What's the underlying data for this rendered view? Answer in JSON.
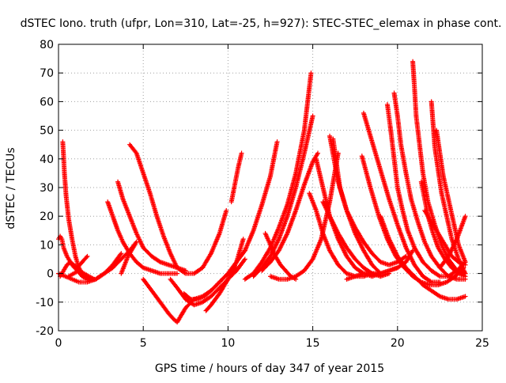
{
  "chart_data": {
    "type": "scatter",
    "title": "dSTEC Iono. truth (ufpr, Lon=310, Lat=-25, h=927): STEC-STEC_elemax in phase cont.",
    "xlabel": "GPS time / hours of day 347 of year 2015",
    "ylabel": "dSTEC  / TECUs",
    "xlim": [
      0,
      25
    ],
    "ylim": [
      -20,
      80
    ],
    "xticks": [
      0,
      5,
      10,
      15,
      20,
      25
    ],
    "yticks": [
      -20,
      -10,
      0,
      10,
      20,
      30,
      40,
      50,
      60,
      70,
      80
    ],
    "grid": true,
    "marker": "plus",
    "color": "#ff0000",
    "series": [
      {
        "x": [
          0.0,
          0.1,
          0.2,
          0.3,
          0.5,
          0.8,
          1.1,
          1.4,
          1.7
        ],
        "y": [
          12,
          13,
          12,
          9,
          6,
          3,
          1,
          -1,
          -2
        ]
      },
      {
        "x": [
          0.25,
          0.3,
          0.35,
          0.45,
          0.6,
          0.8,
          1.0,
          1.2,
          1.5,
          1.8,
          2.2,
          2.7,
          3.2,
          3.7
        ],
        "y": [
          46,
          41,
          35,
          27,
          19,
          12,
          6,
          2,
          -1,
          -2,
          -2,
          0,
          3,
          7
        ]
      },
      {
        "x": [
          0.0,
          0.4,
          0.8,
          1.2,
          1.7,
          2.2,
          2.7,
          3.2,
          3.7,
          4.2,
          4.6
        ],
        "y": [
          0,
          -1,
          -2,
          -3,
          -3,
          -2,
          0,
          2,
          5,
          8,
          11
        ]
      },
      {
        "x": [
          0.1,
          0.3,
          0.5,
          0.7,
          0.9,
          1.1,
          1.4,
          1.7
        ],
        "y": [
          -1,
          1,
          3,
          4,
          3,
          2,
          4,
          6
        ]
      },
      {
        "x": [
          0.6,
          0.9,
          1.2,
          1.5,
          1.8,
          2.1
        ],
        "y": [
          -1,
          0,
          1,
          0,
          -1,
          -2
        ]
      },
      {
        "x": [
          2.9,
          3.2,
          3.5,
          3.8,
          4.2,
          4.6,
          5.0,
          5.5,
          6.0,
          6.5,
          7.0
        ],
        "y": [
          25,
          20,
          15,
          11,
          7,
          4,
          2,
          1,
          0,
          0,
          0
        ]
      },
      {
        "x": [
          3.5,
          3.8,
          4.2,
          4.6,
          5.0,
          5.5,
          6.0,
          6.5,
          7.0,
          7.5
        ],
        "y": [
          32,
          26,
          20,
          14,
          9,
          6,
          4,
          3,
          2,
          1
        ]
      },
      {
        "x": [
          4.2,
          4.6,
          5.0,
          5.4,
          5.8,
          6.2,
          6.6,
          7.0,
          7.5,
          8.0,
          8.5,
          9.0,
          9.5,
          9.9
        ],
        "y": [
          45,
          42,
          35,
          28,
          20,
          13,
          7,
          2,
          0,
          0,
          2,
          7,
          14,
          22
        ]
      },
      {
        "x": [
          3.7,
          3.9,
          4.1,
          4.3,
          4.5
        ],
        "y": [
          0,
          3,
          6,
          8,
          10
        ]
      },
      {
        "x": [
          5.0,
          5.5,
          6.0,
          6.5,
          6.8,
          7.0,
          7.5,
          8.0,
          8.5,
          9.0,
          9.5,
          10.0,
          10.5
        ],
        "y": [
          -2,
          -6,
          -10,
          -14,
          -16,
          -17,
          -12,
          -9,
          -8,
          -6,
          -3,
          0,
          2
        ]
      },
      {
        "x": [
          6.6,
          7.0,
          7.5,
          8.0,
          8.5,
          9.0,
          9.5,
          10.0,
          10.5,
          11.0
        ],
        "y": [
          -2,
          -5,
          -9,
          -11,
          -10,
          -8,
          -5,
          -2,
          1,
          5
        ]
      },
      {
        "x": [
          7.4,
          7.8,
          8.2,
          8.6,
          9.0,
          9.5,
          10.0,
          10.5,
          11.0
        ],
        "y": [
          -7,
          -9,
          -9,
          -8,
          -6,
          -3,
          0,
          4,
          8
        ]
      },
      {
        "x": [
          8.7,
          9.0,
          9.5,
          10.0,
          10.5,
          10.9
        ],
        "y": [
          -13,
          -11,
          -7,
          -2,
          4,
          12
        ]
      },
      {
        "x": [
          10.2,
          10.4,
          10.6,
          10.8
        ],
        "y": [
          25,
          31,
          37,
          42
        ]
      },
      {
        "x": [
          11.0,
          11.5,
          12.0,
          12.5,
          13.0,
          13.5,
          14.0,
          14.5,
          14.9
        ],
        "y": [
          -2,
          0,
          4,
          9,
          16,
          24,
          35,
          50,
          70
        ]
      },
      {
        "x": [
          11.0,
          11.5,
          12.0,
          12.5,
          12.9
        ],
        "y": [
          8,
          15,
          24,
          34,
          46
        ]
      },
      {
        "x": [
          11.5,
          12.0,
          12.5,
          13.0,
          13.5,
          14.0,
          14.5,
          15.0
        ],
        "y": [
          -1,
          2,
          6,
          12,
          20,
          30,
          42,
          55
        ]
      },
      {
        "x": [
          12.0,
          12.5,
          13.0,
          13.5,
          14.0,
          14.5,
          15.0,
          15.3
        ],
        "y": [
          1,
          4,
          8,
          14,
          22,
          31,
          39,
          42
        ]
      },
      {
        "x": [
          12.2,
          12.5,
          12.8,
          13.1,
          13.4,
          13.7,
          14.0
        ],
        "y": [
          14,
          10,
          6,
          3,
          1,
          -1,
          -2
        ]
      },
      {
        "x": [
          12.5,
          13.0,
          13.5,
          14.0,
          14.5,
          15.0,
          15.5,
          16.0,
          16.5
        ],
        "y": [
          -1,
          -2,
          -2,
          -1,
          1,
          5,
          12,
          25,
          42
        ]
      },
      {
        "x": [
          14.8,
          15.2,
          15.6,
          16.0,
          16.5,
          17.0,
          17.5,
          18.0,
          18.5
        ],
        "y": [
          28,
          22,
          14,
          8,
          3,
          0,
          -1,
          -1,
          0
        ]
      },
      {
        "x": [
          15.2,
          15.6,
          16.0,
          16.5,
          17.0,
          17.5,
          18.0,
          18.5,
          19.0
        ],
        "y": [
          40,
          30,
          20,
          12,
          6,
          2,
          0,
          -1,
          0
        ]
      },
      {
        "x": [
          15.6,
          16.0,
          16.5,
          17.0,
          17.5,
          18.0,
          18.5,
          19.0,
          19.5
        ],
        "y": [
          25,
          20,
          14,
          9,
          5,
          2,
          0,
          -1,
          0
        ]
      },
      {
        "x": [
          16.0,
          16.5,
          17.0,
          17.5,
          18.0,
          18.5,
          19.0,
          19.5,
          20.0
        ],
        "y": [
          48,
          32,
          22,
          14,
          8,
          3,
          0,
          1,
          2
        ]
      },
      {
        "x": [
          16.2,
          16.6,
          17.0,
          17.5,
          18.0,
          18.5,
          19.0,
          19.5,
          20.0,
          20.5
        ],
        "y": [
          47,
          30,
          22,
          16,
          11,
          7,
          4,
          3,
          4,
          6
        ]
      },
      {
        "x": [
          18.0,
          18.5,
          19.0,
          19.5,
          20.0,
          20.5,
          21.0,
          21.5,
          22.0,
          22.5
        ],
        "y": [
          56,
          46,
          36,
          26,
          17,
          9,
          3,
          -1,
          -3,
          -3
        ]
      },
      {
        "x": [
          17.9,
          18.4,
          18.9,
          19.4,
          19.9,
          20.4,
          20.9,
          21.4,
          21.9,
          22.4,
          22.9,
          23.4,
          23.9
        ],
        "y": [
          41,
          30,
          20,
          12,
          6,
          2,
          -1,
          -3,
          -4,
          -4,
          -3,
          -1,
          2
        ]
      },
      {
        "x": [
          19.0,
          19.5,
          20.0,
          20.5,
          21.0,
          21.5,
          22.0,
          22.5,
          23.0,
          23.5,
          24.0
        ],
        "y": [
          20,
          12,
          6,
          2,
          -1,
          -4,
          -6,
          -8,
          -9,
          -9,
          -8
        ]
      },
      {
        "x": [
          19.4,
          19.6,
          19.8,
          20.0,
          20.3,
          20.6,
          21.0,
          21.5,
          22.0,
          22.5,
          23.0,
          23.5,
          24.0
        ],
        "y": [
          59,
          50,
          40,
          30,
          22,
          15,
          9,
          4,
          1,
          -1,
          -1,
          1,
          4
        ]
      },
      {
        "x": [
          19.8,
          20.0,
          20.2,
          20.5,
          20.8,
          21.2,
          21.6,
          22.0,
          22.5,
          23.0,
          23.5,
          24.0
        ],
        "y": [
          63,
          55,
          45,
          35,
          26,
          18,
          11,
          6,
          2,
          -1,
          -2,
          -2
        ]
      },
      {
        "x": [
          17.0,
          17.5,
          18.0,
          18.5,
          19.0,
          19.5,
          20.0,
          20.5,
          20.9
        ],
        "y": [
          -2,
          -1,
          0,
          0,
          0,
          1,
          2,
          4,
          8
        ]
      },
      {
        "x": [
          20.9,
          21.0,
          21.1,
          21.3,
          21.5,
          21.8,
          22.2,
          22.6,
          23.0,
          23.5,
          24.0
        ],
        "y": [
          74,
          65,
          55,
          45,
          35,
          25,
          17,
          10,
          5,
          1,
          0
        ]
      },
      {
        "x": [
          21.4,
          21.6,
          21.8,
          22.1,
          22.4,
          22.8,
          23.2,
          23.6,
          24.0
        ],
        "y": [
          32,
          26,
          20,
          14,
          9,
          5,
          2,
          0,
          -1
        ]
      },
      {
        "x": [
          22.0,
          22.1,
          22.2,
          22.4,
          22.6,
          22.9,
          23.2,
          23.6,
          24.0
        ],
        "y": [
          60,
          52,
          44,
          36,
          28,
          20,
          12,
          5,
          0
        ]
      },
      {
        "x": [
          22.3,
          22.5,
          22.7,
          23.0,
          23.3,
          23.6,
          24.0
        ],
        "y": [
          50,
          42,
          34,
          26,
          18,
          10,
          4
        ]
      },
      {
        "x": [
          21.6,
          22.0,
          22.4,
          22.8,
          23.2,
          23.6,
          24.0
        ],
        "y": [
          22,
          18,
          14,
          10,
          6,
          4,
          3
        ]
      },
      {
        "x": [
          22.5,
          23.0,
          23.5,
          24.0
        ],
        "y": [
          2,
          6,
          12,
          20
        ]
      }
    ]
  }
}
